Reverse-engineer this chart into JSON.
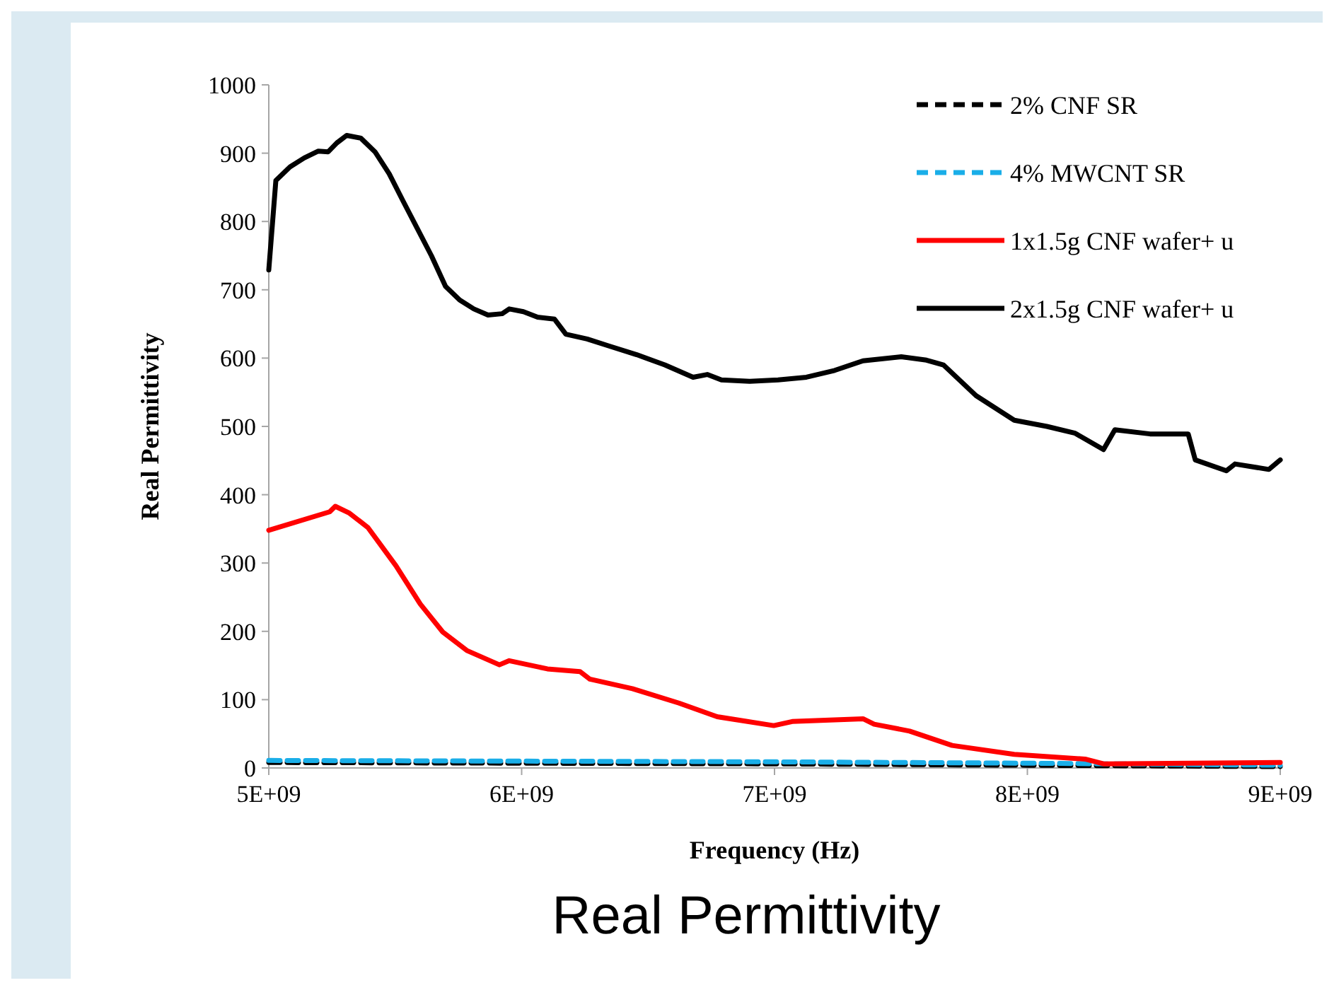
{
  "chart_data": {
    "type": "line",
    "title": "Real Permittivity",
    "xlabel": "Frequency (Hz)",
    "ylabel": "Real Permittivity",
    "xlim": [
      5000000000.0,
      9000000000.0
    ],
    "xticks": [
      {
        "value": 5000000000.0,
        "label": "5E+09"
      },
      {
        "value": 6000000000.0,
        "label": "6E+09"
      },
      {
        "value": 7000000000.0,
        "label": "7E+09"
      },
      {
        "value": 8000000000.0,
        "label": "8E+09"
      },
      {
        "value": 9000000000.0,
        "label": "9E+09"
      }
    ],
    "ylim": [
      0,
      1000
    ],
    "yticks": [
      0,
      100,
      200,
      300,
      400,
      500,
      600,
      700,
      800,
      900,
      1000
    ],
    "grid": false,
    "legend": "top right",
    "series": [
      {
        "name": "2% CNF SR",
        "color": "#000000",
        "line_style": "dashed",
        "x": [
          5000000000.0,
          6000000000.0,
          7000000000.0,
          8000000000.0,
          9000000000.0
        ],
        "values": [
          8,
          7,
          6,
          4,
          2
        ]
      },
      {
        "name": "4% MWCNT SR",
        "color": "#1aaee8",
        "line_style": "dashed",
        "x": [
          5000000000.0,
          6000000000.0,
          7000000000.0,
          8000000000.0,
          9000000000.0
        ],
        "values": [
          11,
          10,
          9,
          7,
          4
        ]
      },
      {
        "name": "1x1.5g CNF wafer+ u",
        "color": "#ff0000",
        "line_style": "solid",
        "x": [
          5000000000.0,
          5241000000.0,
          5263000000.0,
          5319000000.0,
          5392000000.0,
          5503000000.0,
          5599000000.0,
          5688000000.0,
          5783000000.0,
          5912000000.0,
          5951000000.0,
          6102000000.0,
          6231000000.0,
          6270000000.0,
          6438000000.0,
          6622000000.0,
          6773000000.0,
          6997000000.0,
          7070000000.0,
          7350000000.0,
          7394000000.0,
          7534000000.0,
          7702000000.0,
          7948000000.0,
          8228000000.0,
          8301000000.0,
          9000000000.0
        ],
        "values": [
          348,
          375,
          383,
          373,
          352,
          296,
          240,
          199,
          172,
          151,
          157,
          145,
          141,
          130,
          116,
          95,
          75,
          62,
          68,
          72,
          64,
          54,
          33,
          20,
          13,
          6,
          8
        ]
      },
      {
        "name": "2x1.5g CNF wafer+ u",
        "color": "#000000",
        "line_style": "solid",
        "x": [
          5000000000.0,
          5028000000.0,
          5084000000.0,
          5140000000.0,
          5196000000.0,
          5235000000.0,
          5269000000.0,
          5308000000.0,
          5364000000.0,
          5420000000.0,
          5476000000.0,
          5531000000.0,
          5587000000.0,
          5643000000.0,
          5699000000.0,
          5755000000.0,
          5811000000.0,
          5867000000.0,
          5923000000.0,
          5951000000.0,
          6007000000.0,
          6063000000.0,
          6130000000.0,
          6175000000.0,
          6259000000.0,
          6343000000.0,
          6455000000.0,
          6566000000.0,
          6678000000.0,
          6734000000.0,
          6790000000.0,
          6902000000.0,
          7014000000.0,
          7126000000.0,
          7238000000.0,
          7350000000.0,
          7501000000.0,
          7601000000.0,
          7668000000.0,
          7797000000.0,
          7948000000.0,
          8077000000.0,
          8189000000.0,
          8301000000.0,
          8346000000.0,
          8485000000.0,
          8636000000.0,
          8664000000.0,
          8787000000.0,
          8821000000.0,
          8955000000.0,
          9000000000.0
        ],
        "values": [
          729,
          860,
          880,
          893,
          903,
          902,
          915,
          926,
          922,
          902,
          870,
          830,
          790,
          750,
          705,
          685,
          672,
          663,
          665,
          672,
          668,
          660,
          657,
          635,
          628,
          618,
          605,
          590,
          572,
          576,
          568,
          566,
          568,
          572,
          582,
          596,
          602,
          597,
          590,
          545,
          509,
          500,
          490,
          466,
          495,
          489,
          489,
          451,
          435,
          445,
          437,
          451
        ]
      }
    ]
  }
}
